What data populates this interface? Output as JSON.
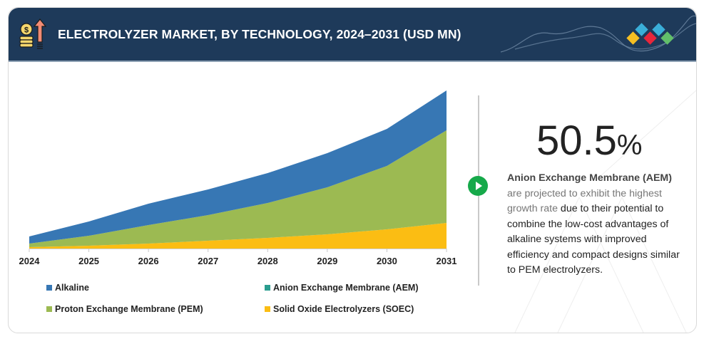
{
  "header": {
    "title": "ELECTROLYZER MARKET, BY TECHNOLOGY, 2024–2031 (USD MN)",
    "icon": "money-growth-icon",
    "logo": "brand-diamonds-logo",
    "background_color": "#1e3a5a"
  },
  "chart_data": {
    "type": "area",
    "stacked": true,
    "title": "ELECTROLYZER MARKET, BY TECHNOLOGY, 2024–2031 (USD MN)",
    "xlabel": "",
    "ylabel": "",
    "y_axis_shown": false,
    "value_note": "No y-axis shown; values are relative heights estimated from the stacked area layers",
    "categories": [
      "2024",
      "2025",
      "2026",
      "2027",
      "2028",
      "2029",
      "2030",
      "2031"
    ],
    "series": [
      {
        "name": "Solid Oxide Electrolyzers (SOEC)",
        "color": "#fbbd13",
        "values": [
          2,
          4,
          7,
          11,
          15,
          20,
          27,
          36
        ]
      },
      {
        "name": "Anion Exchange Membrane (AEM)",
        "color": "#2a9d8f",
        "values": [
          0,
          0,
          0,
          0,
          0,
          0,
          0,
          0
        ]
      },
      {
        "name": "Proton Exchange Membrane (PEM)",
        "color": "#9cba52",
        "values": [
          5,
          14,
          26,
          36,
          49,
          66,
          89,
          130
        ]
      },
      {
        "name": "Alkaline",
        "color": "#3777b4",
        "values": [
          10,
          20,
          30,
          36,
          42,
          48,
          52,
          56
        ]
      }
    ],
    "ylim": [
      0,
      222
    ],
    "grid": false,
    "legend": {
      "placement": "bottom",
      "order": [
        "Alkaline",
        "Anion Exchange Membrane (AEM)",
        "Proton Exchange Membrane (PEM)",
        "Solid Oxide Electrolyzers (SOEC)"
      ]
    }
  },
  "legend": {
    "items": [
      {
        "label": "Alkaline",
        "color": "#3777b4"
      },
      {
        "label": "Anion Exchange Membrane (AEM)",
        "color": "#2a9d8f"
      },
      {
        "label": "Proton Exchange Membrane (PEM)",
        "color": "#9cba52"
      },
      {
        "label": "Solid Oxide Electrolyzers (SOEC)",
        "color": "#fbbd13"
      }
    ]
  },
  "insight": {
    "stat_value": "50.5",
    "stat_unit": "%",
    "highlight": "Anion Exchange Membrane (AEM)",
    "highlight2": "are projected to exhibit the highest growth rate",
    "rest": " due to their potential to combine the low-cost advantages of alkaline systems with improved efficiency and compact designs similar to PEM electrolyzers.",
    "play_icon": "play-icon",
    "accent_color": "#16a94a"
  }
}
